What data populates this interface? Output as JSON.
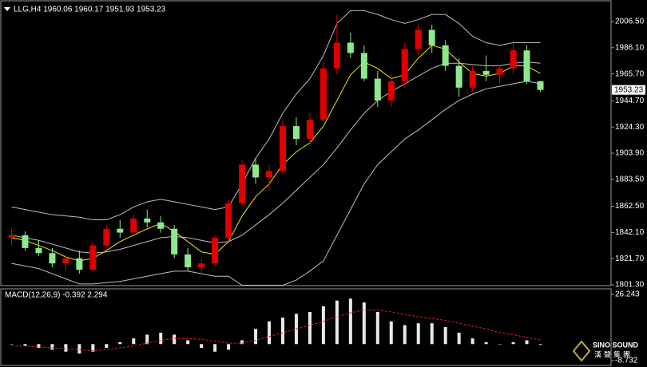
{
  "chart_data": [
    {
      "type": "candlestick",
      "title": "LLG,H4  1960.06 1960.17 1951.93 1953.23",
      "up_color": "#e00000",
      "down_color": "#8ee88e",
      "open": [
        1838,
        1840,
        1830,
        1826,
        1818,
        1822,
        1813,
        1832,
        1845,
        1842,
        1853,
        1850,
        1845,
        1825,
        1815,
        1818,
        1838,
        1865,
        1895,
        1885,
        1890,
        1925,
        1915,
        1930,
        1970,
        1990,
        1982,
        1962,
        1945,
        1960,
        1985,
        2000,
        1988,
        1972,
        1955,
        1968,
        1965,
        1970,
        1984,
        1960.06
      ],
      "high": [
        1845,
        1843,
        1836,
        1830,
        1825,
        1828,
        1835,
        1848,
        1852,
        1856,
        1860,
        1855,
        1848,
        1830,
        1822,
        1840,
        1868,
        1898,
        1900,
        1895,
        1930,
        1932,
        1935,
        1975,
        2012,
        1998,
        1988,
        1968,
        1965,
        1990,
        2005,
        2004,
        1992,
        1978,
        1972,
        1980,
        1972,
        1990,
        1988,
        1960.17
      ],
      "low": [
        1832,
        1828,
        1824,
        1815,
        1812,
        1810,
        1812,
        1830,
        1838,
        1840,
        1846,
        1842,
        1822,
        1812,
        1810,
        1816,
        1835,
        1862,
        1880,
        1875,
        1888,
        1910,
        1912,
        1928,
        1965,
        1978,
        1960,
        1940,
        1940,
        1955,
        1980,
        1982,
        1968,
        1948,
        1952,
        1960,
        1958,
        1966,
        1958,
        1951.93
      ],
      "close": [
        1840,
        1830,
        1826,
        1818,
        1822,
        1813,
        1832,
        1845,
        1842,
        1853,
        1850,
        1845,
        1825,
        1815,
        1818,
        1838,
        1865,
        1895,
        1885,
        1890,
        1925,
        1915,
        1930,
        1970,
        1990,
        1982,
        1962,
        1945,
        1960,
        1985,
        2000,
        1988,
        1972,
        1955,
        1968,
        1965,
        1970,
        1984,
        1960,
        1953.23
      ],
      "series": [
        {
          "color": "#bdbdbd",
          "values": [
            1862,
            1860,
            1858,
            1856,
            1855,
            1854,
            1852,
            1852,
            1856,
            1862,
            1866,
            1868,
            1866,
            1864,
            1862,
            1860,
            1862,
            1880,
            1900,
            1915,
            1935,
            1950,
            1962,
            1980,
            2005,
            2015,
            2015,
            2012,
            2008,
            2005,
            2008,
            2012,
            2012,
            2005,
            1995,
            1990,
            1988,
            1990,
            1990,
            1990
          ]
        },
        {
          "color": "#bdbdbd",
          "values": [
            1840,
            1838,
            1836,
            1833,
            1830,
            1827,
            1826,
            1827,
            1829,
            1832,
            1835,
            1838,
            1839,
            1838,
            1836,
            1834,
            1835,
            1840,
            1848,
            1856,
            1865,
            1875,
            1885,
            1895,
            1908,
            1922,
            1935,
            1945,
            1952,
            1958,
            1964,
            1970,
            1974,
            1974,
            1973,
            1972,
            1972,
            1974,
            1975,
            1974
          ]
        },
        {
          "color": "#bdbdbd",
          "values": [
            1818,
            1816,
            1814,
            1810,
            1806,
            1802,
            1802,
            1803,
            1804,
            1806,
            1808,
            1810,
            1812,
            1812,
            1810,
            1808,
            1808,
            1801,
            1801,
            1801,
            1801,
            1805,
            1812,
            1820,
            1840,
            1860,
            1880,
            1895,
            1905,
            1915,
            1922,
            1930,
            1938,
            1945,
            1950,
            1954,
            1956,
            1958,
            1960,
            1958
          ]
        },
        {
          "color": "#f2e600",
          "values": [
            1838,
            1836,
            1832,
            1828,
            1823,
            1820,
            1822,
            1828,
            1835,
            1840,
            1845,
            1849,
            1843,
            1835,
            1827,
            1825,
            1835,
            1855,
            1870,
            1880,
            1895,
            1905,
            1912,
            1925,
            1945,
            1965,
            1975,
            1970,
            1962,
            1965,
            1978,
            1988,
            1985,
            1975,
            1966,
            1964,
            1966,
            1972,
            1972,
            1966
          ]
        }
      ],
      "ylim": [
        1800.7,
        2020.8
      ],
      "yticks": [
        {
          "value": 2006.5,
          "label": "2006.50"
        },
        {
          "value": 1986.1,
          "label": "1986.10"
        },
        {
          "value": 1965.7,
          "label": "1965.70"
        },
        {
          "value": 1944.7,
          "label": "1944.70"
        },
        {
          "value": 1924.3,
          "label": "1924.30"
        },
        {
          "value": 1903.9,
          "label": "1903.90"
        },
        {
          "value": 1883.5,
          "label": "1883.50"
        },
        {
          "value": 1862.5,
          "label": "1862.50"
        },
        {
          "value": 1842.1,
          "label": "1842.10"
        },
        {
          "value": 1821.7,
          "label": "1821.70"
        },
        {
          "value": 1801.3,
          "label": "1801.30"
        }
      ]
    },
    {
      "type": "macd",
      "title": "MACD(12,26,9) -0.392 2.294",
      "values": [
        0,
        -1,
        -2,
        -3,
        -4,
        -5,
        -4,
        -2,
        1,
        3,
        5,
        6,
        5,
        2,
        -2,
        -4,
        -3,
        2,
        8,
        12,
        14,
        16,
        17,
        20,
        23,
        24,
        22,
        17,
        12,
        10,
        11,
        11,
        9,
        6,
        3,
        1,
        0,
        1,
        2,
        -0.392
      ],
      "color": "#e8e8e8",
      "series": [
        {
          "color": "#e02020",
          "values": [
            -1,
            -1,
            -1.5,
            -2,
            -2.5,
            -3,
            -3.5,
            -3,
            -2,
            -1,
            0.5,
            2,
            3,
            3,
            2.5,
            1.5,
            0.5,
            0.5,
            2,
            4,
            6,
            8,
            10,
            12,
            14.5,
            16.5,
            18,
            18,
            17,
            15.5,
            14.5,
            13.5,
            12.5,
            11,
            9.5,
            8,
            6,
            5,
            3.5,
            2.294
          ]
        }
      ],
      "ylim": [
        -8.732,
        26.243
      ],
      "yticks": [
        26.243,
        -8.732
      ]
    }
  ],
  "watermark": {
    "brand": "SINO SOUND",
    "name": "漢聲集團"
  }
}
